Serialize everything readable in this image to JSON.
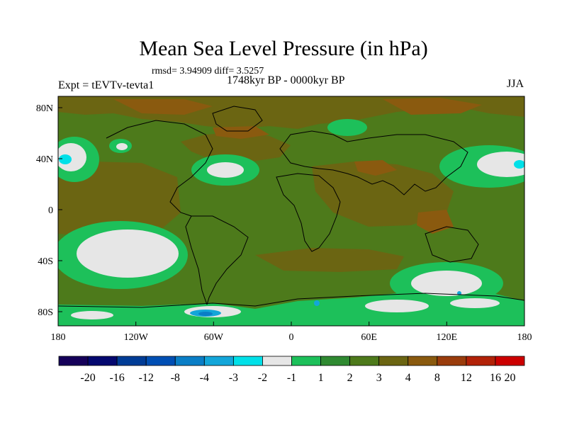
{
  "title": "Mean Sea Level Pressure (in hPa)",
  "stats_line": "rmsd= 3.94909  diff= 3.5257",
  "period": "1748kyr BP - 0000kyr BP",
  "experiment": "Expt = tEVTv-tevta1",
  "season": "JJA",
  "map": {
    "x_ticks": [
      "180",
      "120W",
      "60W",
      "0",
      "60E",
      "120E",
      "180"
    ],
    "y_ticks": [
      "80N",
      "40N",
      "0",
      "40S",
      "80S"
    ]
  },
  "colorbar": {
    "colors": [
      "#150059",
      "#04086f",
      "#003c96",
      "#004fb4",
      "#0a7ec6",
      "#13a6d9",
      "#00e0e8",
      "#e6e6e6",
      "#1dc05a",
      "#2f8a31",
      "#4d7a1b",
      "#6b6512",
      "#8a5a0f",
      "#9a3c0c",
      "#b22208",
      "#cc0000"
    ],
    "labels": [
      "-20",
      "-16",
      "-12",
      "-8",
      "-4",
      "-3",
      "-2",
      "-1",
      "1",
      "2",
      "3",
      "4",
      "8",
      "12",
      "16",
      "20"
    ]
  }
}
